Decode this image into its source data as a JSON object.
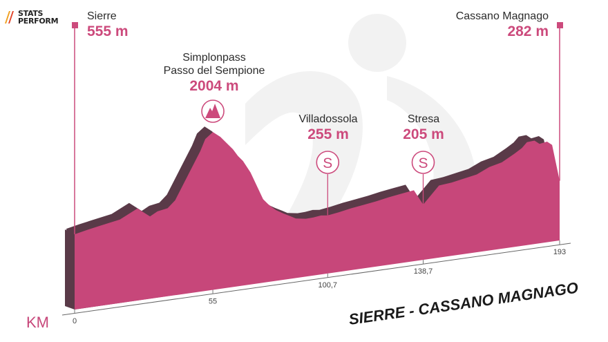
{
  "brand": {
    "line1": "STATS",
    "line2": "PERFORM",
    "icon": "stats-perform-logo"
  },
  "route_title": "SIERRE - CASSANO MAGNAGO",
  "colors": {
    "profile_face": "#c7477a",
    "profile_top": "#5a3a48",
    "accent": "#cc4a7c",
    "watermark": "#f1f1f1"
  },
  "chart_data": {
    "type": "area",
    "title": "SIERRE - CASSANO MAGNAGO",
    "xlabel": "KM",
    "ylabel": "",
    "xlim": [
      0,
      193
    ],
    "x_ticks": [
      {
        "value": 0,
        "label": "0"
      },
      {
        "value": 55,
        "label": "55"
      },
      {
        "value": 100.7,
        "label": "100,7"
      },
      {
        "value": 138.7,
        "label": "138,7"
      },
      {
        "value": 193,
        "label": "193"
      }
    ],
    "series": [
      {
        "x": [
          0,
          5,
          10,
          18,
          25,
          30,
          33,
          37,
          40,
          45,
          50,
          52,
          55,
          58,
          60,
          63,
          65,
          67,
          70,
          73,
          75,
          77,
          80,
          83,
          86,
          88,
          92,
          95,
          98,
          100.7,
          105,
          110,
          115,
          120,
          125,
          130,
          135,
          138.7,
          145,
          150,
          155,
          160,
          165,
          170,
          175,
          178,
          180,
          183,
          185,
          188,
          190,
          193
        ],
        "y": [
          555,
          600,
          640,
          700,
          850,
          680,
          750,
          780,
          900,
          1300,
          1700,
          1900,
          2004,
          1900,
          1800,
          1650,
          1520,
          1420,
          1200,
          900,
          700,
          600,
          480,
          400,
          330,
          280,
          250,
          255,
          270,
          255,
          280,
          320,
          350,
          380,
          420,
          450,
          480,
          205,
          500,
          520,
          560,
          600,
          700,
          750,
          870,
          950,
          1040,
          1050,
          980,
          1000,
          930,
          282
        ]
      }
    ],
    "points": [
      {
        "name": "Sierre",
        "elevation": "555 m",
        "km": 0,
        "marker": "start-flag"
      },
      {
        "name_line1": "Simplonpass",
        "name_line2": "Passo del Sempione",
        "elevation": "2004 m",
        "km": 55,
        "marker": "mountain-icon"
      },
      {
        "name": "Villadossola",
        "elevation": "255 m",
        "km": 100.7,
        "marker": "sprint-icon",
        "marker_text": "S"
      },
      {
        "name": "Stresa",
        "elevation": "205 m",
        "km": 138.7,
        "marker": "sprint-icon",
        "marker_text": "S"
      },
      {
        "name": "Cassano Magnago",
        "elevation": "282 m",
        "km": 193,
        "marker": "finish-flag"
      }
    ]
  }
}
